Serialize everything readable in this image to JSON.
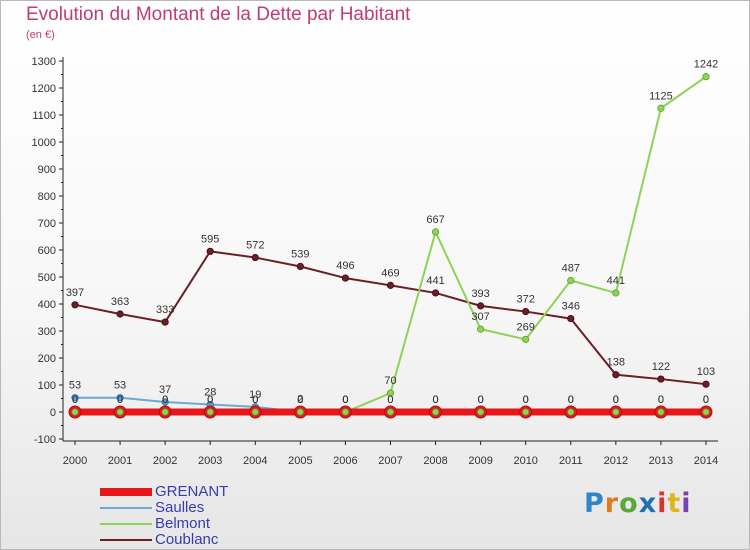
{
  "title": "Evolution du Montant de la Dette par Habitant",
  "subtitle": "(en €)",
  "logo": {
    "text": "Proxiti",
    "letter_colors": [
      "#2f86c9",
      "#e07a22",
      "#5aa83a",
      "#1f6fb5",
      "#d9342b",
      "#e0b41c",
      "#7a3fb0"
    ]
  },
  "chart_data": {
    "type": "line",
    "title": "Evolution du Montant de la Dette par Habitant",
    "subtitle": "(en €)",
    "xlabel": "",
    "ylabel": "",
    "ylim": [
      -100,
      1300
    ],
    "yticks": [
      -100,
      0,
      100,
      200,
      300,
      400,
      500,
      600,
      700,
      800,
      900,
      1000,
      1100,
      1200,
      1300
    ],
    "grid": false,
    "legend_position": "bottom-left",
    "x": [
      "2000",
      "2001",
      "2002",
      "2003",
      "2004",
      "2005",
      "2006",
      "2007",
      "2008",
      "2009",
      "2010",
      "2011",
      "2012",
      "2013",
      "2014"
    ],
    "series": [
      {
        "name": "GRENANT",
        "color": "#e8161a",
        "values": [
          0,
          0,
          0,
          0,
          0,
          0,
          0,
          0,
          0,
          0,
          0,
          0,
          0,
          0,
          0
        ],
        "labels": [
          "0",
          "0",
          "0",
          "0",
          "0",
          "0",
          "0",
          "0",
          "0",
          "0",
          "0",
          "0",
          "0",
          "0",
          "0"
        ]
      },
      {
        "name": "Saulles",
        "color": "#6fa8d4",
        "values": [
          53,
          53,
          37,
          28,
          19,
          0,
          0,
          0,
          0,
          0,
          0,
          0,
          0,
          0,
          0
        ],
        "labels": [
          "53",
          "53",
          "37",
          "28",
          "19",
          "0",
          "0",
          "0",
          "0",
          "0",
          "0",
          "0",
          "0",
          "0",
          "0"
        ]
      },
      {
        "name": "Belmont",
        "color": "#8ed356",
        "values": [
          0,
          0,
          0,
          0,
          0,
          2,
          0,
          70,
          667,
          307,
          269,
          487,
          441,
          1125,
          1242
        ],
        "labels": [
          "0",
          "0",
          "0",
          "0",
          "0",
          "2",
          "0",
          "70",
          "667",
          "307",
          "269",
          "487",
          "441",
          "1125",
          "1242"
        ]
      },
      {
        "name": "Coublanc",
        "color": "#6b1e25",
        "values": [
          397,
          363,
          333,
          595,
          572,
          539,
          496,
          469,
          441,
          393,
          372,
          346,
          138,
          122,
          103
        ],
        "labels": [
          "397",
          "363",
          "333",
          "595",
          "572",
          "539",
          "496",
          "469",
          "441",
          "393",
          "372",
          "346",
          "138",
          "122",
          "103"
        ]
      }
    ]
  }
}
